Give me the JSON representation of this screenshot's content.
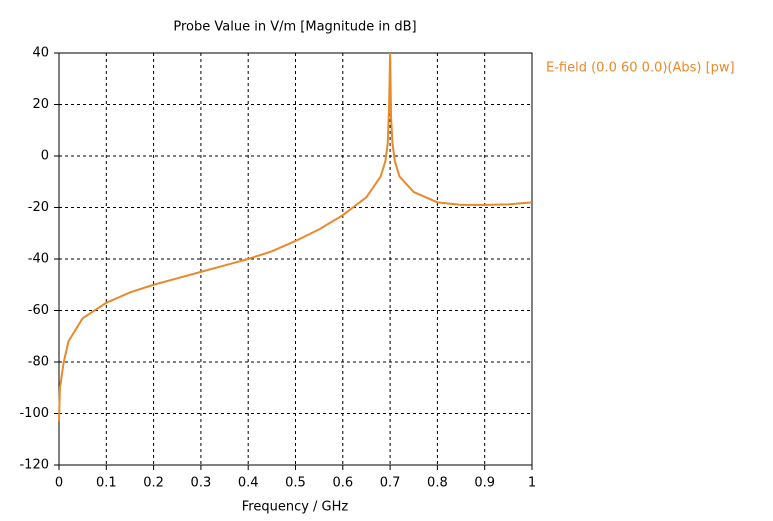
{
  "chart_data": {
    "type": "line",
    "title": "Probe Value in V/m [Magnitude in dB]",
    "x_label": "Frequency / GHz",
    "x": [
      0,
      0.002,
      0.01,
      0.02,
      0.05,
      0.1,
      0.15,
      0.2,
      0.25,
      0.3,
      0.35,
      0.4,
      0.45,
      0.5,
      0.55,
      0.6,
      0.65,
      0.68,
      0.69,
      0.695,
      0.698,
      0.7,
      0.702,
      0.705,
      0.71,
      0.72,
      0.75,
      0.8,
      0.85,
      0.9,
      0.95,
      1
    ],
    "series": [
      {
        "name": "E-field (0.0 60 0.0)(Abs) [pw]",
        "color": "#e8892c",
        "values": [
          -103,
          -90,
          -80,
          -72,
          -63,
          -57,
          -53,
          -50,
          -47.5,
          -45,
          -42.5,
          -40,
          -37,
          -33,
          -28.5,
          -23,
          -16,
          -8,
          -2,
          5,
          20,
          40,
          15,
          5,
          -2,
          -8,
          -14,
          -18,
          -19,
          -19,
          -18.8,
          -18
        ]
      }
    ],
    "xlim": [
      0,
      1
    ],
    "xticks": [
      0,
      0.1,
      0.2,
      0.3,
      0.4,
      0.5,
      0.6,
      0.7,
      0.8,
      0.9,
      1
    ],
    "ylim": [
      -120,
      40
    ],
    "yticks": [
      -120,
      -100,
      -80,
      -60,
      -40,
      -20,
      0,
      20,
      40
    ],
    "grid": true,
    "legend": "right"
  }
}
